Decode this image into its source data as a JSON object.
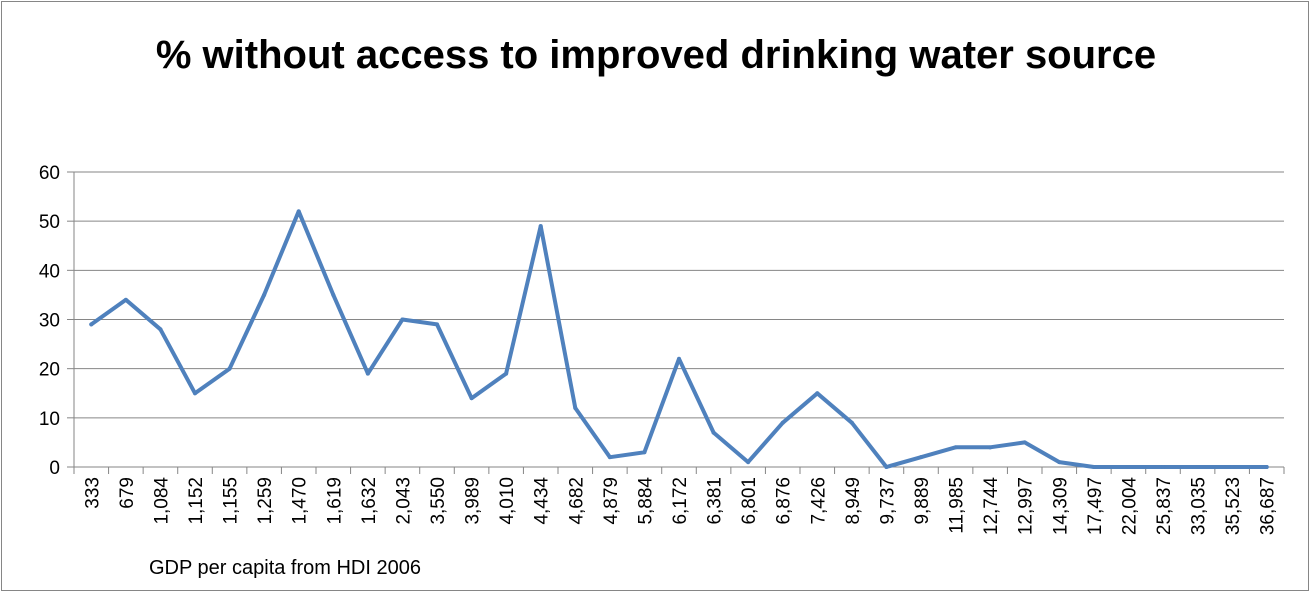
{
  "chart_data": {
    "type": "line",
    "title": "% without access to improved drinking water source",
    "xlabel": "GDP per capita from HDI 2006",
    "ylabel": "",
    "ylim": [
      0,
      60
    ],
    "yticks": [
      0,
      10,
      20,
      30,
      40,
      50,
      60
    ],
    "grid": true,
    "legend": "none",
    "line_color": "#4F81BD",
    "categories": [
      "333",
      "679",
      "1,084",
      "1,152",
      "1,155",
      "1,259",
      "1,470",
      "1,619",
      "1,632",
      "2,043",
      "3,550",
      "3,989",
      "4,010",
      "4,434",
      "4,682",
      "4,879",
      "5,884",
      "6,172",
      "6,381",
      "6,801",
      "6,876",
      "7,426",
      "8,949",
      "9,737",
      "9,889",
      "11,985",
      "12,744",
      "12,997",
      "14,309",
      "17,497",
      "22,004",
      "25,837",
      "33,035",
      "35,523",
      "36,687"
    ],
    "series": [
      {
        "values": [
          29,
          34,
          28,
          15,
          20,
          35,
          52,
          35,
          19,
          30,
          29,
          14,
          19,
          49,
          12,
          2,
          3,
          22,
          7,
          1,
          9,
          15,
          9,
          0,
          2,
          4,
          4,
          5,
          1,
          0,
          0,
          0,
          0,
          0,
          0
        ]
      }
    ]
  }
}
